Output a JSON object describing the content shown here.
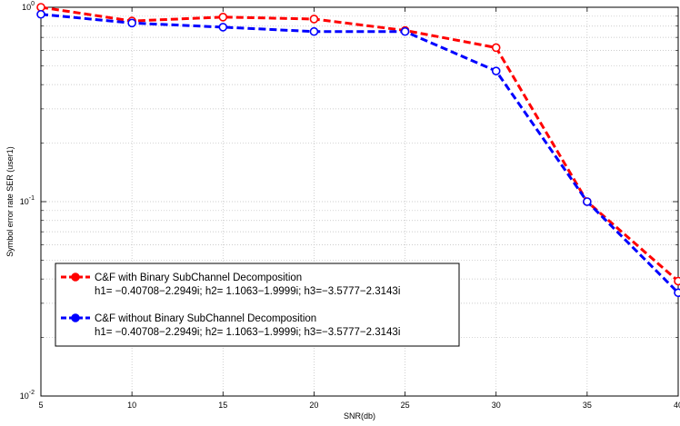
{
  "chart_data": {
    "type": "line",
    "xlabel": "SNR(db)",
    "ylabel": "Symbol error rate SER (user1)",
    "xlim": [
      5,
      40
    ],
    "ylim": [
      0.01,
      1
    ],
    "yscale": "log",
    "grid": true,
    "legend_position": "lower-left",
    "x": [
      5,
      10,
      15,
      20,
      25,
      30,
      35,
      40
    ],
    "xticks": [
      "5",
      "10",
      "15",
      "20",
      "25",
      "30",
      "35",
      "40"
    ],
    "yticks": [
      {
        "base": "10",
        "exp": "0"
      },
      {
        "base": "10",
        "exp": "-1"
      },
      {
        "base": "10",
        "exp": "-2"
      }
    ],
    "series": [
      {
        "name": "C&F with Binary SubChannel Decomposition",
        "subtitle": "h1= −0.40708−2.2949i; h2= 1.1063−1.9999i; h3=−3.5777−2.3143i",
        "color": "#ff0000",
        "values": [
          1.0,
          0.85,
          0.89,
          0.87,
          0.76,
          0.62,
          0.1,
          0.039
        ]
      },
      {
        "name": "C&F without Binary SubChannel Decomposition",
        "subtitle": "h1= −0.40708−2.2949i; h2= 1.1063−1.9999i; h3=−3.5777−2.3143i",
        "color": "#0000ff",
        "values": [
          0.92,
          0.83,
          0.79,
          0.75,
          0.75,
          0.47,
          0.1,
          0.034
        ]
      }
    ]
  }
}
